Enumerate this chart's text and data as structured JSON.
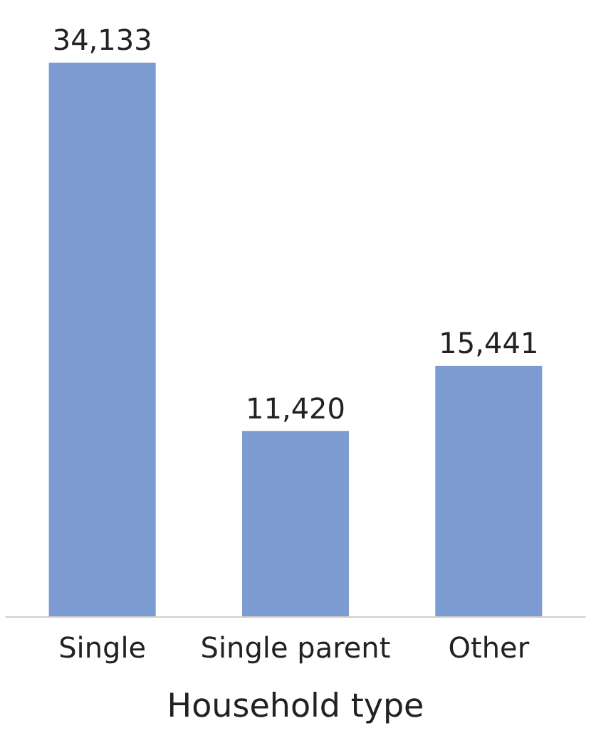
{
  "chart_data": {
    "type": "bar",
    "xlabel": "Household type",
    "categories": [
      "Single",
      "Single parent",
      "Other"
    ],
    "values": [
      34133,
      11420,
      15441
    ],
    "value_labels": [
      "34,133",
      "11,420",
      "15,441"
    ],
    "color": "#7b9bd1"
  }
}
